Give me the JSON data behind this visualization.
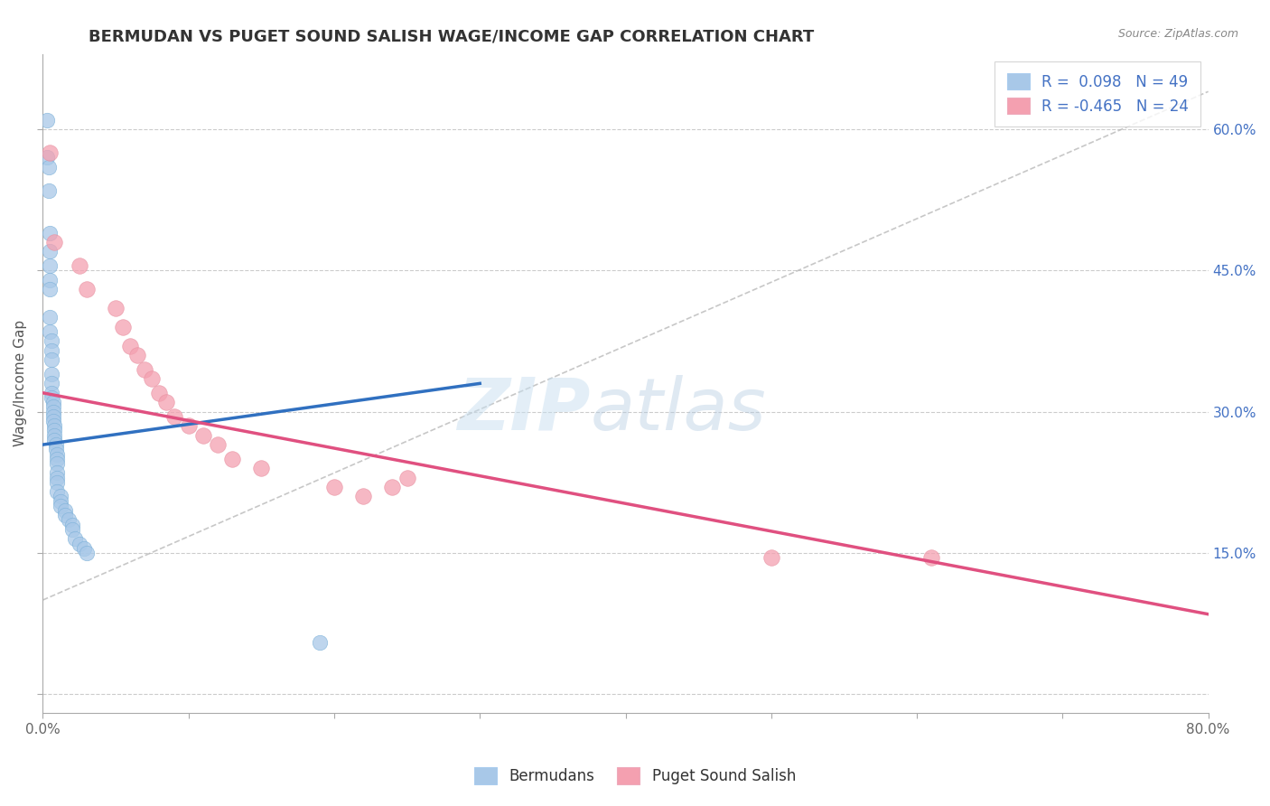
{
  "title": "BERMUDAN VS PUGET SOUND SALISH WAGE/INCOME GAP CORRELATION CHART",
  "source": "Source: ZipAtlas.com",
  "ylabel": "Wage/Income Gap",
  "xlabel": "",
  "xlim": [
    0.0,
    0.8
  ],
  "ylim": [
    -0.02,
    0.68
  ],
  "yticks": [
    0.0,
    0.15,
    0.3,
    0.45,
    0.6
  ],
  "yticklabels": [
    "",
    "15.0%",
    "30.0%",
    "45.0%",
    "60.0%"
  ],
  "xticks": [
    0.0,
    0.1,
    0.2,
    0.3,
    0.4,
    0.5,
    0.6,
    0.7,
    0.8
  ],
  "xticklabels": [
    "0.0%",
    "",
    "",
    "",
    "",
    "",
    "",
    "",
    "80.0%"
  ],
  "blue_R": 0.098,
  "blue_N": 49,
  "pink_R": -0.465,
  "pink_N": 24,
  "blue_color": "#a8c8e8",
  "pink_color": "#f4a0b0",
  "blue_line_color": "#3070c0",
  "pink_line_color": "#e05080",
  "dashed_line_color": "#b0b0b0",
  "background_color": "#ffffff",
  "grid_color": "#cccccc",
  "watermark_zip": "ZIP",
  "watermark_atlas": "atlas",
  "legend_blue_label": "Bermudans",
  "legend_pink_label": "Puget Sound Salish",
  "blue_scatter_x": [
    0.003,
    0.003,
    0.004,
    0.004,
    0.005,
    0.005,
    0.005,
    0.005,
    0.005,
    0.005,
    0.005,
    0.006,
    0.006,
    0.006,
    0.006,
    0.006,
    0.006,
    0.006,
    0.007,
    0.007,
    0.007,
    0.007,
    0.007,
    0.008,
    0.008,
    0.008,
    0.008,
    0.009,
    0.009,
    0.01,
    0.01,
    0.01,
    0.01,
    0.01,
    0.01,
    0.01,
    0.012,
    0.012,
    0.012,
    0.015,
    0.015,
    0.018,
    0.02,
    0.02,
    0.022,
    0.025,
    0.028,
    0.03,
    0.19
  ],
  "blue_scatter_y": [
    0.61,
    0.57,
    0.56,
    0.535,
    0.49,
    0.47,
    0.455,
    0.44,
    0.43,
    0.4,
    0.385,
    0.375,
    0.365,
    0.355,
    0.34,
    0.33,
    0.32,
    0.315,
    0.31,
    0.305,
    0.3,
    0.295,
    0.29,
    0.285,
    0.28,
    0.275,
    0.27,
    0.265,
    0.26,
    0.255,
    0.25,
    0.245,
    0.235,
    0.23,
    0.225,
    0.215,
    0.21,
    0.205,
    0.2,
    0.195,
    0.19,
    0.185,
    0.18,
    0.175,
    0.165,
    0.16,
    0.155,
    0.15,
    0.055
  ],
  "pink_scatter_x": [
    0.005,
    0.008,
    0.025,
    0.03,
    0.05,
    0.055,
    0.06,
    0.065,
    0.07,
    0.075,
    0.08,
    0.085,
    0.09,
    0.1,
    0.11,
    0.12,
    0.13,
    0.15,
    0.2,
    0.22,
    0.24,
    0.25,
    0.5,
    0.61
  ],
  "pink_scatter_y": [
    0.575,
    0.48,
    0.455,
    0.43,
    0.41,
    0.39,
    0.37,
    0.36,
    0.345,
    0.335,
    0.32,
    0.31,
    0.295,
    0.285,
    0.275,
    0.265,
    0.25,
    0.24,
    0.22,
    0.21,
    0.22,
    0.23,
    0.145,
    0.145
  ],
  "blue_line_x": [
    0.0,
    0.3
  ],
  "blue_line_y": [
    0.265,
    0.33
  ],
  "pink_line_x": [
    0.0,
    0.8
  ],
  "pink_line_y": [
    0.32,
    0.085
  ]
}
